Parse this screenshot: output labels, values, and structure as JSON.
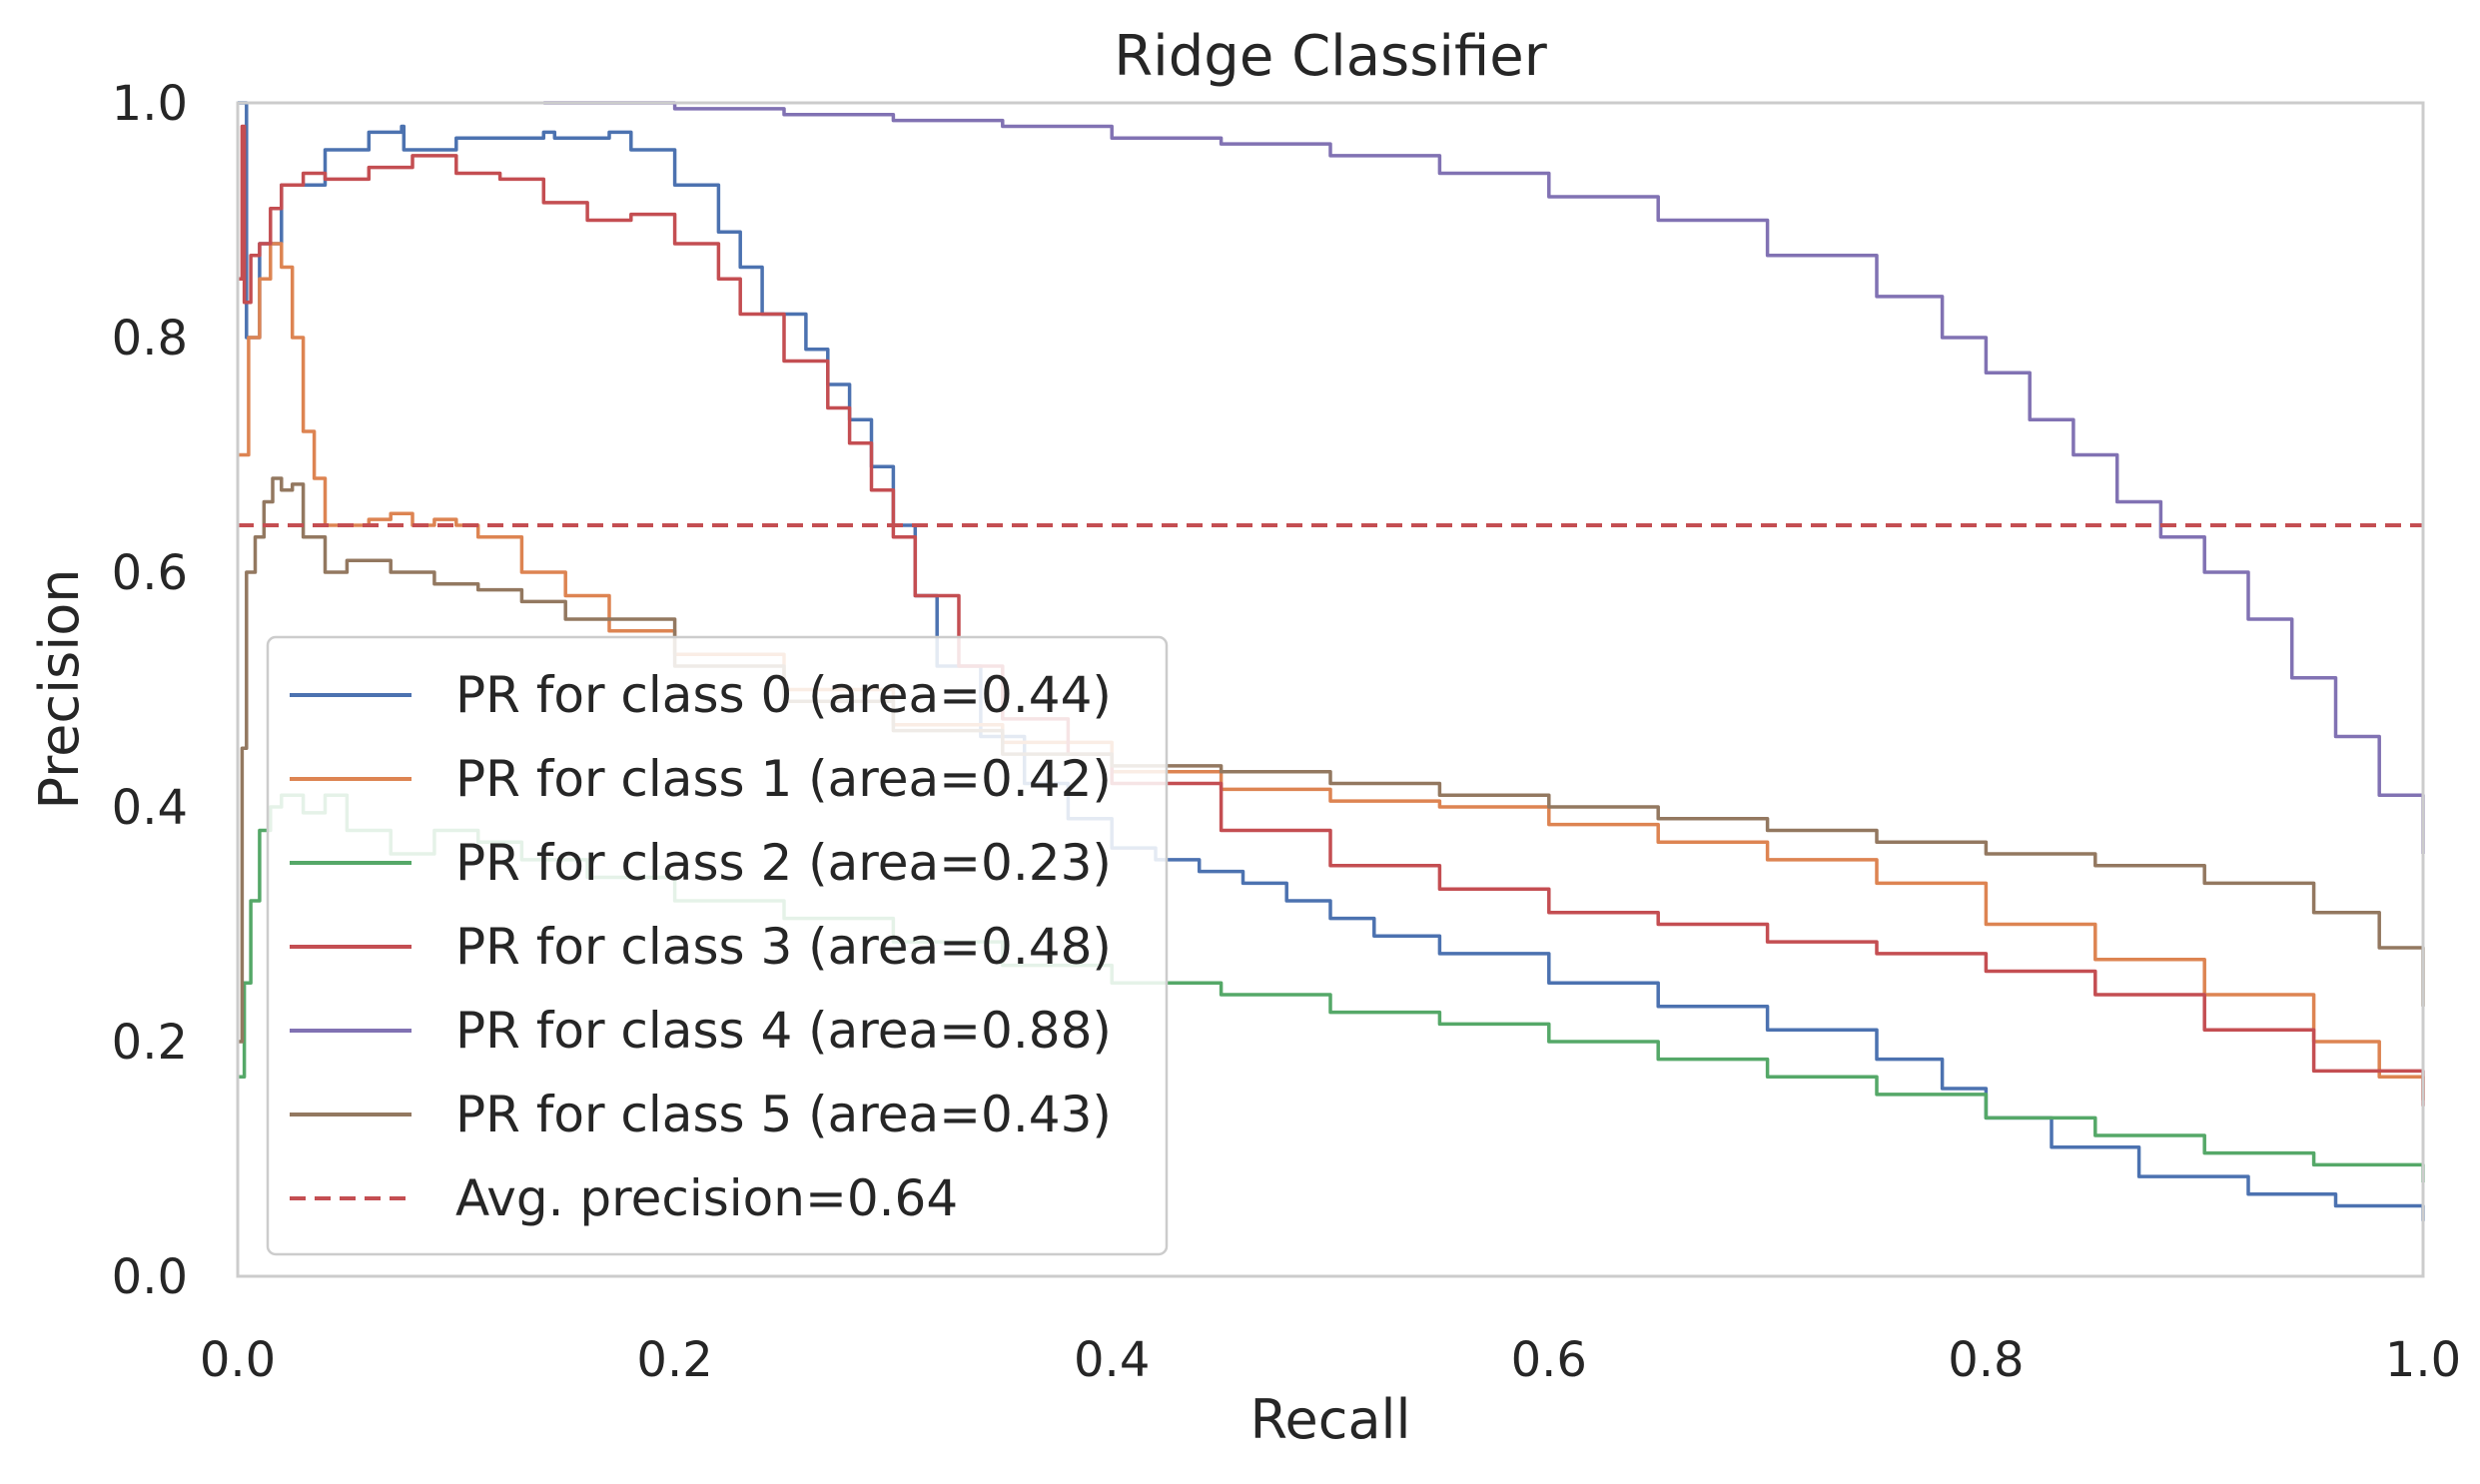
{
  "chart_data": {
    "type": "line",
    "title": "Ridge Classifier",
    "xlabel": "Recall",
    "ylabel": "Precision",
    "xlim": [
      0.0,
      1.0
    ],
    "ylim": [
      0.0,
      1.0
    ],
    "grid": false,
    "legend_position": "lower-left",
    "x_ticks": [
      "0.0",
      "0.2",
      "0.4",
      "0.6",
      "0.8",
      "1.0"
    ],
    "y_ticks": [
      "0.0",
      "0.2",
      "0.4",
      "0.6",
      "0.8",
      "1.0"
    ],
    "series": [
      {
        "name": "PR for class 0 (area=0.44)",
        "color": "#4c72b0",
        "points": [
          [
            0.0,
            1.0
          ],
          [
            0.003,
            1.0
          ],
          [
            0.004,
            0.8
          ],
          [
            0.01,
            0.88
          ],
          [
            0.02,
            0.93
          ],
          [
            0.04,
            0.96
          ],
          [
            0.06,
            0.975
          ],
          [
            0.075,
            0.98
          ],
          [
            0.076,
            0.96
          ],
          [
            0.1,
            0.97
          ],
          [
            0.14,
            0.975
          ],
          [
            0.145,
            0.97
          ],
          [
            0.17,
            0.975
          ],
          [
            0.18,
            0.96
          ],
          [
            0.2,
            0.93
          ],
          [
            0.22,
            0.89
          ],
          [
            0.23,
            0.86
          ],
          [
            0.24,
            0.82
          ],
          [
            0.26,
            0.79
          ],
          [
            0.27,
            0.76
          ],
          [
            0.28,
            0.73
          ],
          [
            0.29,
            0.69
          ],
          [
            0.3,
            0.64
          ],
          [
            0.31,
            0.58
          ],
          [
            0.32,
            0.52
          ],
          [
            0.34,
            0.46
          ],
          [
            0.36,
            0.42
          ],
          [
            0.38,
            0.39
          ],
          [
            0.4,
            0.365
          ],
          [
            0.42,
            0.355
          ],
          [
            0.44,
            0.345
          ],
          [
            0.46,
            0.335
          ],
          [
            0.48,
            0.32
          ],
          [
            0.5,
            0.305
          ],
          [
            0.52,
            0.29
          ],
          [
            0.55,
            0.275
          ],
          [
            0.6,
            0.25
          ],
          [
            0.65,
            0.23
          ],
          [
            0.7,
            0.21
          ],
          [
            0.75,
            0.185
          ],
          [
            0.78,
            0.16
          ],
          [
            0.8,
            0.135
          ],
          [
            0.83,
            0.11
          ],
          [
            0.87,
            0.085
          ],
          [
            0.92,
            0.07
          ],
          [
            0.96,
            0.06
          ],
          [
            1.0,
            0.047
          ]
        ]
      },
      {
        "name": "PR for class 1 (area=0.42)",
        "color": "#dd8452",
        "points": [
          [
            0.0,
            0.7
          ],
          [
            0.005,
            0.8
          ],
          [
            0.01,
            0.85
          ],
          [
            0.015,
            0.88
          ],
          [
            0.02,
            0.86
          ],
          [
            0.025,
            0.8
          ],
          [
            0.03,
            0.72
          ],
          [
            0.035,
            0.68
          ],
          [
            0.04,
            0.64
          ],
          [
            0.05,
            0.64
          ],
          [
            0.06,
            0.645
          ],
          [
            0.07,
            0.65
          ],
          [
            0.08,
            0.64
          ],
          [
            0.09,
            0.645
          ],
          [
            0.1,
            0.64
          ],
          [
            0.11,
            0.63
          ],
          [
            0.13,
            0.6
          ],
          [
            0.15,
            0.58
          ],
          [
            0.17,
            0.55
          ],
          [
            0.2,
            0.53
          ],
          [
            0.25,
            0.5
          ],
          [
            0.3,
            0.47
          ],
          [
            0.35,
            0.455
          ],
          [
            0.4,
            0.43
          ],
          [
            0.45,
            0.415
          ],
          [
            0.5,
            0.405
          ],
          [
            0.55,
            0.4
          ],
          [
            0.6,
            0.385
          ],
          [
            0.65,
            0.37
          ],
          [
            0.7,
            0.355
          ],
          [
            0.75,
            0.335
          ],
          [
            0.8,
            0.3
          ],
          [
            0.85,
            0.27
          ],
          [
            0.9,
            0.24
          ],
          [
            0.95,
            0.2
          ],
          [
            0.98,
            0.17
          ],
          [
            1.0,
            0.15
          ]
        ]
      },
      {
        "name": "PR for class 2 (area=0.23)",
        "color": "#55a868",
        "points": [
          [
            0.0,
            0.17
          ],
          [
            0.003,
            0.25
          ],
          [
            0.006,
            0.32
          ],
          [
            0.01,
            0.38
          ],
          [
            0.015,
            0.4
          ],
          [
            0.02,
            0.41
          ],
          [
            0.03,
            0.395
          ],
          [
            0.04,
            0.41
          ],
          [
            0.05,
            0.38
          ],
          [
            0.07,
            0.36
          ],
          [
            0.09,
            0.38
          ],
          [
            0.11,
            0.37
          ],
          [
            0.13,
            0.355
          ],
          [
            0.16,
            0.34
          ],
          [
            0.2,
            0.32
          ],
          [
            0.25,
            0.305
          ],
          [
            0.3,
            0.285
          ],
          [
            0.35,
            0.265
          ],
          [
            0.4,
            0.25
          ],
          [
            0.45,
            0.24
          ],
          [
            0.5,
            0.225
          ],
          [
            0.55,
            0.215
          ],
          [
            0.6,
            0.2
          ],
          [
            0.65,
            0.185
          ],
          [
            0.7,
            0.17
          ],
          [
            0.75,
            0.155
          ],
          [
            0.8,
            0.135
          ],
          [
            0.85,
            0.12
          ],
          [
            0.9,
            0.105
          ],
          [
            0.95,
            0.095
          ],
          [
            1.0,
            0.08
          ]
        ]
      },
      {
        "name": "PR for class 3 (area=0.48)",
        "color": "#c44e52",
        "points": [
          [
            0.0,
            0.85
          ],
          [
            0.002,
            0.98
          ],
          [
            0.003,
            0.83
          ],
          [
            0.006,
            0.87
          ],
          [
            0.01,
            0.88
          ],
          [
            0.015,
            0.91
          ],
          [
            0.02,
            0.93
          ],
          [
            0.03,
            0.94
          ],
          [
            0.04,
            0.935
          ],
          [
            0.06,
            0.945
          ],
          [
            0.08,
            0.955
          ],
          [
            0.1,
            0.94
          ],
          [
            0.12,
            0.935
          ],
          [
            0.14,
            0.915
          ],
          [
            0.16,
            0.9
          ],
          [
            0.18,
            0.905
          ],
          [
            0.2,
            0.88
          ],
          [
            0.22,
            0.85
          ],
          [
            0.23,
            0.82
          ],
          [
            0.25,
            0.78
          ],
          [
            0.27,
            0.74
          ],
          [
            0.28,
            0.71
          ],
          [
            0.29,
            0.67
          ],
          [
            0.3,
            0.63
          ],
          [
            0.31,
            0.58
          ],
          [
            0.33,
            0.52
          ],
          [
            0.35,
            0.475
          ],
          [
            0.38,
            0.445
          ],
          [
            0.4,
            0.42
          ],
          [
            0.45,
            0.38
          ],
          [
            0.5,
            0.35
          ],
          [
            0.55,
            0.33
          ],
          [
            0.6,
            0.31
          ],
          [
            0.65,
            0.3
          ],
          [
            0.7,
            0.285
          ],
          [
            0.75,
            0.275
          ],
          [
            0.8,
            0.26
          ],
          [
            0.85,
            0.24
          ],
          [
            0.9,
            0.21
          ],
          [
            0.95,
            0.175
          ],
          [
            1.0,
            0.145
          ]
        ]
      },
      {
        "name": "PR for class 4 (area=0.88)",
        "color": "#8172b3",
        "points": [
          [
            0.14,
            1.0
          ],
          [
            0.2,
            0.995
          ],
          [
            0.25,
            0.99
          ],
          [
            0.3,
            0.985
          ],
          [
            0.35,
            0.98
          ],
          [
            0.4,
            0.97
          ],
          [
            0.45,
            0.965
          ],
          [
            0.5,
            0.955
          ],
          [
            0.55,
            0.94
          ],
          [
            0.6,
            0.92
          ],
          [
            0.65,
            0.9
          ],
          [
            0.7,
            0.87
          ],
          [
            0.75,
            0.835
          ],
          [
            0.78,
            0.8
          ],
          [
            0.8,
            0.77
          ],
          [
            0.82,
            0.73
          ],
          [
            0.84,
            0.7
          ],
          [
            0.86,
            0.66
          ],
          [
            0.88,
            0.63
          ],
          [
            0.9,
            0.6
          ],
          [
            0.92,
            0.56
          ],
          [
            0.94,
            0.51
          ],
          [
            0.96,
            0.46
          ],
          [
            0.98,
            0.41
          ],
          [
            1.0,
            0.36
          ]
        ]
      },
      {
        "name": "PR for class 5 (area=0.43)",
        "color": "#937860",
        "points": [
          [
            0.0,
            0.2
          ],
          [
            0.002,
            0.45
          ],
          [
            0.004,
            0.6
          ],
          [
            0.008,
            0.63
          ],
          [
            0.012,
            0.66
          ],
          [
            0.016,
            0.68
          ],
          [
            0.02,
            0.67
          ],
          [
            0.025,
            0.675
          ],
          [
            0.03,
            0.63
          ],
          [
            0.04,
            0.6
          ],
          [
            0.05,
            0.61
          ],
          [
            0.07,
            0.6
          ],
          [
            0.09,
            0.59
          ],
          [
            0.11,
            0.585
          ],
          [
            0.13,
            0.575
          ],
          [
            0.15,
            0.56
          ],
          [
            0.2,
            0.52
          ],
          [
            0.25,
            0.49
          ],
          [
            0.3,
            0.465
          ],
          [
            0.35,
            0.445
          ],
          [
            0.4,
            0.435
          ],
          [
            0.45,
            0.43
          ],
          [
            0.5,
            0.42
          ],
          [
            0.55,
            0.41
          ],
          [
            0.6,
            0.4
          ],
          [
            0.65,
            0.39
          ],
          [
            0.7,
            0.38
          ],
          [
            0.75,
            0.37
          ],
          [
            0.8,
            0.36
          ],
          [
            0.85,
            0.35
          ],
          [
            0.9,
            0.335
          ],
          [
            0.95,
            0.31
          ],
          [
            0.98,
            0.28
          ],
          [
            1.0,
            0.23
          ]
        ]
      }
    ],
    "reference_lines": [
      {
        "name": "Avg. precision=0.64",
        "color": "#c44e52",
        "style": "dashed",
        "y": 0.64
      }
    ]
  }
}
